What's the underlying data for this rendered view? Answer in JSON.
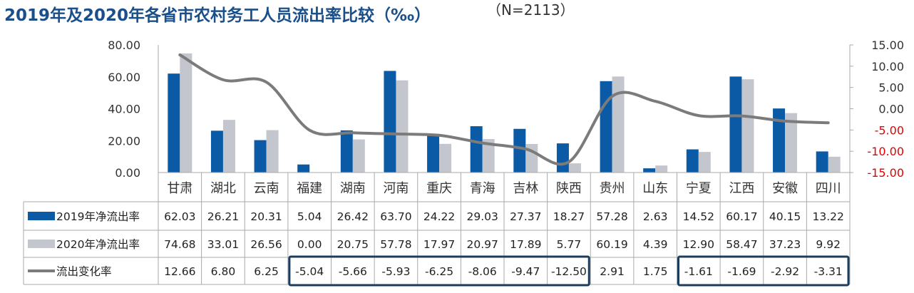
{
  "header": {
    "title": "2019年及2020年各省市农村务工人员流出率比较（‰）",
    "subtitle": "（N=2113）"
  },
  "colors": {
    "series_2019": "#0b5aa6",
    "series_2020": "#c3c6cc",
    "line": "#7b7b7b",
    "negative_tick": "#e60000",
    "highlight_box": "#1c3e5e",
    "grid": "#aaaaaa"
  },
  "chart_data": {
    "type": "bar",
    "title": "2019年及2020年各省市农村务工人员流出率比较（‰）",
    "subtitle": "（N=2113）",
    "categories": [
      "甘肃",
      "湖北",
      "云南",
      "福建",
      "湖南",
      "河南",
      "重庆",
      "青海",
      "吉林",
      "陕西",
      "贵州",
      "山东",
      "宁夏",
      "江西",
      "安徽",
      "四川"
    ],
    "series": [
      {
        "name": "2019年净流出率",
        "type": "bar",
        "axis": "left",
        "values": [
          62.03,
          26.21,
          20.31,
          5.04,
          26.42,
          63.7,
          24.22,
          29.03,
          27.37,
          18.27,
          57.28,
          2.63,
          14.52,
          60.17,
          40.15,
          13.22
        ],
        "labels": [
          "62.03",
          "26.21",
          "20.31",
          "5.04",
          "26.42",
          "63.70",
          "24.22",
          "29.03",
          "27.37",
          "18.27",
          "57.28",
          "2.63",
          "14.52",
          "60.17",
          "40.15",
          "13.22"
        ]
      },
      {
        "name": "2020年净流出率",
        "type": "bar",
        "axis": "left",
        "values": [
          74.68,
          33.01,
          26.56,
          0.0,
          20.75,
          57.78,
          17.97,
          20.97,
          17.89,
          5.77,
          60.19,
          4.39,
          12.9,
          58.47,
          37.23,
          9.92
        ],
        "labels": [
          "74.68",
          "33.01",
          "26.56",
          "0.00",
          "20.75",
          "57.78",
          "17.97",
          "20.97",
          "17.89",
          "5.77",
          "60.19",
          "4.39",
          "12.90",
          "58.47",
          "37.23",
          "9.92"
        ]
      },
      {
        "name": "流出变化率",
        "type": "line",
        "axis": "right",
        "values": [
          12.66,
          6.8,
          6.25,
          -5.04,
          -5.66,
          -5.93,
          -6.25,
          -8.06,
          -9.47,
          -12.5,
          2.91,
          1.75,
          -1.61,
          -1.69,
          -2.92,
          -3.31
        ],
        "labels": [
          "12.66",
          "6.80",
          "6.25",
          "-5.04",
          "-5.66",
          "-5.93",
          "-6.25",
          "-8.06",
          "-9.47",
          "-12.50",
          "2.91",
          "1.75",
          "-1.61",
          "-1.69",
          "-2.92",
          "-3.31"
        ]
      }
    ],
    "y_left": {
      "min": 0,
      "max": 80,
      "ticks": [
        "0.00",
        "20.00",
        "40.00",
        "60.00",
        "80.00"
      ]
    },
    "y_right": {
      "min": -15,
      "max": 15,
      "ticks": [
        "-15.00",
        "-10.00",
        "-5.00",
        "0.00",
        "5.00",
        "10.00",
        "15.00"
      ]
    },
    "highlight_groups": [
      [
        "福建",
        "湖南",
        "河南",
        "重庆",
        "青海",
        "吉林",
        "陕西"
      ],
      [
        "宁夏",
        "江西",
        "安徽",
        "四川"
      ]
    ],
    "data_table": true,
    "grid": false
  }
}
